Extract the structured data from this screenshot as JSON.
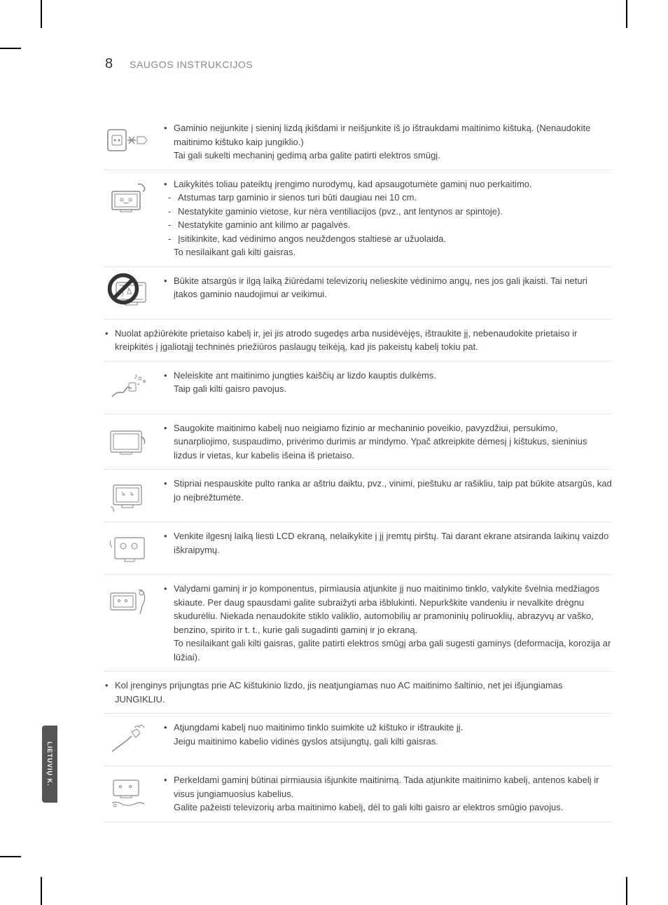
{
  "page": {
    "number": "8",
    "header": "SAUGOS INSTRUKCIJOS",
    "side_tab": "LIETUVIŲ K."
  },
  "rows": [
    {
      "type": "icon-row",
      "icon": "plug-outlet",
      "bullets": [
        "Gaminio neįjunkite į sieninį lizdą įkišdami ir neišjunkite iš jo ištraukdami maitinimo kištuką. (Nenaudokite maitinimo kištuko kaip jungiklio.)\nTai gali sukelti mechaninį gedimą arba galite patirti elektros smūgį."
      ]
    },
    {
      "type": "icon-row",
      "icon": "monitor-hand",
      "bullets": [
        "Laikykitės toliau pateiktų įrengimo nurodymų, kad apsaugotumėte gaminį nuo perkaitimo."
      ],
      "sublist": [
        "Atstumas tarp gaminio ir sienos turi būti daugiau nei 10 cm.",
        "Nestatykite gaminio vietose, kur nėra ventiliacijos (pvz., ant lentynos ar spintoje).",
        "Nestatykite gaminio ant kilimo ar pagalvės.",
        "Įsitikinkite, kad vėdinimo angos neuždengos staltiesė ar užuolaida."
      ],
      "after_sublist": "To nesilaikant gali kilti gaisras."
    },
    {
      "type": "icon-row",
      "icon": "monitor-prohibit",
      "bullets": [
        "Būkite atsargūs ir ilgą laiką žiūrėdami televizorių nelieskite vėdinimo angų, nes jos gali įkaisti. Tai neturi įtakos gaminio naudojimui ar veikimui."
      ]
    },
    {
      "type": "full-width",
      "bullets": [
        "Nuolat apžiūrėkite prietaiso kabelį ir, jei jis atrodo sugedęs arba nusidėvėjęs, ištraukite jį, nebenaudokite prietaiso ir kreipkitės į įgaliotąjį techninės priežiūros paslaugų teikėją, kad jis pakeistų kabelį tokiu pat."
      ]
    },
    {
      "type": "icon-row",
      "icon": "plug-dust",
      "bullets": [
        "Neleiskite ant maitinimo jungties kaiščių ar lizdo kauptis dulkėms.\nTaip gali kilti gaisro pavojus."
      ]
    },
    {
      "type": "icon-row",
      "icon": "cable-damage",
      "bullets": [
        "Saugokite maitinimo kabelį nuo neigiamo fizinio ar mechaninio poveikio, pavyzdžiui, persukimo, sunarpliojimo, suspaudimo, privėrimo durimis ar mindymo. Ypač atkreipkite dėmesį į kištukus, sieninius lizdus ir vietas, kur kabelis išeina iš prietaiso."
      ]
    },
    {
      "type": "icon-row",
      "icon": "monitor-press",
      "bullets": [
        "Stipriai nespauskite pulto ranka ar aštriu daiktu, pvz., vinimi, pieštuku ar rašikliu, taip pat būkite atsargūs, kad jo neįbrėžtumėte."
      ]
    },
    {
      "type": "icon-row",
      "icon": "screen-touch",
      "bullets": [
        "Venkite ilgesnį laiką liesti LCD ekraną, nelaikykite į jį įremtų pirštų. Tai darant ekrane atsiranda laikinų vaizdo iškraipymų."
      ]
    },
    {
      "type": "icon-row",
      "icon": "clean-monitor",
      "bullets": [
        "Valydami gaminį ir jo komponentus, pirmiausia atjunkite jį nuo maitinimo tinklo, valykite švelnia medžiagos skiaute. Per daug spausdami galite subraižyti arba išblukinti. Nepurkškite vandeniu ir nevalkite drėgnu skudurėliu. Niekada nenaudokite stiklo valiklio, automobilių ar pramoninių poliruoklių, abrazyvų ar vaško, benzino, spirito ir t. t., kurie gali sugadinti gaminį ir jo ekraną.\nTo nesilaikant gali kilti gaisras, galite patirti elektros smūgį arba gali sugesti gaminys (deformacija, korozija ar lūžiai)."
      ]
    },
    {
      "type": "full-width",
      "bullets": [
        "Kol įrenginys prijungtas prie AC kištukinio lizdo, jis neatjungiamas nuo AC maitinimo šaltinio, net jei išjungiamas JUNGIKLIU."
      ]
    },
    {
      "type": "icon-row",
      "icon": "unplug-cord",
      "bullets": [
        "Atjungdami kabelį nuo maitinimo tinklo suimkite už kištuko ir ištraukite jį.\nJeigu maitinimo kabelio vidinės gyslos atsijungtų, gali kilti gaisras."
      ]
    },
    {
      "type": "icon-row",
      "icon": "move-monitor",
      "bullets": [
        "Perkeldami gaminį būtinai pirmiausia išjunkite maitinimą. Tada atjunkite maitinimo kabelį, antenos kabelį ir visus jungiamuosius kabelius.\nGalite pažeisti televizorių arba maitinimo kabelį, dėl to gali kilti gaisro ar elektros smūgio pavojus."
      ]
    }
  ]
}
